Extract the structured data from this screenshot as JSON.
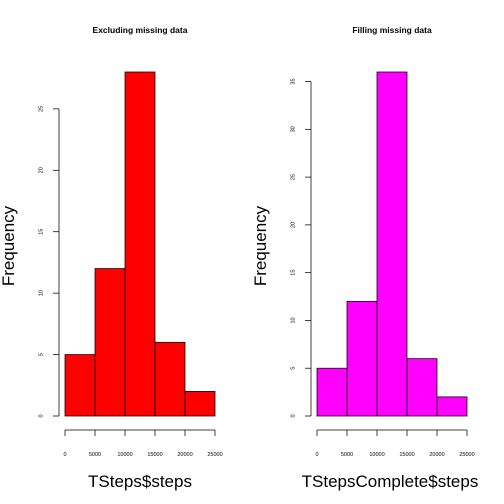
{
  "chart_data": [
    {
      "type": "bar",
      "title": "Excluding missing data",
      "xlabel": "TSteps$steps",
      "ylabel": "Frequency",
      "bin_edges": [
        0,
        5000,
        10000,
        15000,
        20000,
        25000
      ],
      "values": [
        5,
        12,
        28,
        6,
        2
      ],
      "xticks": [
        "0",
        "5000",
        "10000",
        "15000",
        "20000",
        "25000"
      ],
      "yticks": [
        "0",
        "5",
        "10",
        "15",
        "20",
        "25"
      ],
      "xlim": [
        0,
        25000
      ],
      "ylim": [
        0,
        28
      ],
      "color": "#ff0000"
    },
    {
      "type": "bar",
      "title": "Filling missing data",
      "xlabel": "TStepsComplete$steps",
      "ylabel": "Frequency",
      "bin_edges": [
        0,
        5000,
        10000,
        15000,
        20000,
        25000
      ],
      "values": [
        5,
        12,
        36,
        6,
        2
      ],
      "xticks": [
        "0",
        "5000",
        "10000",
        "15000",
        "20000",
        "25000"
      ],
      "yticks": [
        "0",
        "5",
        "10",
        "15",
        "20",
        "25",
        "30",
        "35"
      ],
      "xlim": [
        0,
        25000
      ],
      "ylim": [
        0,
        36
      ],
      "color": "#ff00ff"
    }
  ]
}
